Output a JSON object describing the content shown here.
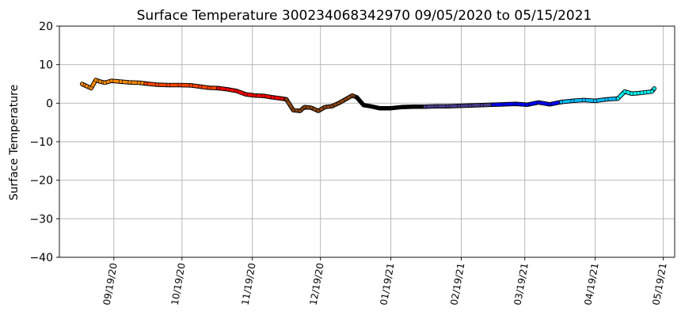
{
  "chart_data": {
    "type": "scatter",
    "title": "Surface Temperature 300234068342970  09/05/2020 to 05/15/2021",
    "xlabel": "",
    "ylabel": "Surface Temperature",
    "ylim": [
      -40,
      20
    ],
    "yticks": [
      20,
      10,
      0,
      -10,
      -20,
      -30,
      -40
    ],
    "xlim": [
      "2020-08-26",
      "2021-05-24"
    ],
    "xticks": [
      "09/19/20",
      "10/19/20",
      "11/19/20",
      "12/19/20",
      "01/19/21",
      "02/19/21",
      "03/19/21",
      "04/19/21",
      "05/19/21"
    ],
    "grid": true,
    "legend": "none",
    "series": [
      {
        "color": "#ff8c00",
        "x": [
          "2020-09-05",
          "2020-09-07",
          "2020-09-09",
          "2020-09-11",
          "2020-09-13",
          "2020-09-15",
          "2020-09-18",
          "2020-09-22",
          "2020-09-26",
          "2020-09-30",
          "2020-10-03"
        ],
        "y": [
          5.0,
          4.4,
          3.9,
          6.0,
          5.6,
          5.3,
          5.8,
          5.6,
          5.4,
          5.3,
          5.1
        ]
      },
      {
        "color": "#ff4500",
        "x": [
          "2020-10-03",
          "2020-10-08",
          "2020-10-13",
          "2020-10-18",
          "2020-10-23",
          "2020-10-27",
          "2020-10-31",
          "2020-11-04"
        ],
        "y": [
          5.1,
          4.8,
          4.7,
          4.7,
          4.6,
          4.3,
          4.0,
          3.9
        ]
      },
      {
        "color": "#ff0000",
        "x": [
          "2020-11-04",
          "2020-11-08",
          "2020-11-12",
          "2020-11-16",
          "2020-11-20",
          "2020-11-24",
          "2020-11-28",
          "2020-12-02",
          "2020-12-04"
        ],
        "y": [
          3.9,
          3.6,
          3.2,
          2.3,
          2.0,
          1.9,
          1.5,
          1.2,
          1.0
        ]
      },
      {
        "color": "#8b4513",
        "x": [
          "2020-12-04",
          "2020-12-07",
          "2020-12-10",
          "2020-12-12",
          "2020-12-15",
          "2020-12-18",
          "2020-12-21",
          "2020-12-24",
          "2020-12-27",
          "2020-12-30",
          "2021-01-02",
          "2021-01-04"
        ],
        "y": [
          1.0,
          -1.8,
          -2.0,
          -1.0,
          -1.2,
          -2.0,
          -1.0,
          -0.8,
          0.0,
          1.0,
          2.0,
          1.5
        ]
      },
      {
        "color": "#000000",
        "x": [
          "2021-01-04",
          "2021-01-07",
          "2021-01-10",
          "2021-01-14",
          "2021-01-19",
          "2021-01-24",
          "2021-01-29",
          "2021-02-03"
        ],
        "y": [
          1.5,
          -0.5,
          -0.8,
          -1.3,
          -1.3,
          -1.0,
          -0.9,
          -0.9
        ]
      },
      {
        "color": "#483d8b",
        "x": [
          "2021-02-03",
          "2021-02-08",
          "2021-02-13",
          "2021-02-18",
          "2021-02-23",
          "2021-02-28",
          "2021-03-05"
        ],
        "y": [
          -0.9,
          -0.8,
          -0.8,
          -0.7,
          -0.6,
          -0.5,
          -0.4
        ]
      },
      {
        "color": "#0000ff",
        "x": [
          "2021-03-05",
          "2021-03-10",
          "2021-03-15",
          "2021-03-20",
          "2021-03-25",
          "2021-03-30",
          "2021-04-04"
        ],
        "y": [
          -0.4,
          -0.3,
          -0.2,
          -0.4,
          0.2,
          -0.3,
          0.3
        ]
      },
      {
        "color": "#00bfff",
        "x": [
          "2021-04-04",
          "2021-04-09",
          "2021-04-14",
          "2021-04-19",
          "2021-04-24",
          "2021-04-29"
        ],
        "y": [
          0.3,
          0.6,
          0.8,
          0.6,
          1.0,
          1.2
        ]
      },
      {
        "color": "#00ffff",
        "x": [
          "2021-04-29",
          "2021-05-02",
          "2021-05-05",
          "2021-05-08",
          "2021-05-11",
          "2021-05-14",
          "2021-05-15"
        ],
        "y": [
          1.2,
          3.0,
          2.5,
          2.6,
          2.8,
          3.0,
          3.8
        ]
      }
    ]
  }
}
